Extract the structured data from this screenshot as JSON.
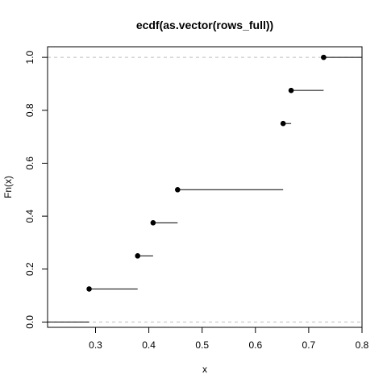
{
  "chart_data": {
    "type": "step",
    "title": "ecdf(as.vector(rows_full))",
    "xlabel": "x",
    "ylabel": "Fn(x)",
    "xlim": [
      0.21,
      0.8
    ],
    "ylim": [
      -0.02,
      1.04
    ],
    "x_ticks": [
      0.3,
      0.4,
      0.5,
      0.6,
      0.7,
      0.8
    ],
    "x_tick_labels": [
      "0.3",
      "0.4",
      "0.5",
      "0.6",
      "0.7",
      "0.8"
    ],
    "y_ticks": [
      0.0,
      0.2,
      0.4,
      0.6,
      0.8,
      1.0
    ],
    "y_tick_labels": [
      "0.0",
      "0.2",
      "0.4",
      "0.6",
      "0.8",
      "1.0"
    ],
    "horizontal_reference_lines": [
      0,
      1
    ],
    "jump_points": [
      {
        "x": 0.288,
        "y": 0.125
      },
      {
        "x": 0.379,
        "y": 0.25
      },
      {
        "x": 0.408,
        "y": 0.375
      },
      {
        "x": 0.454,
        "y": 0.5
      },
      {
        "x": 0.652,
        "y": 0.75
      },
      {
        "x": 0.667,
        "y": 0.875
      },
      {
        "x": 0.728,
        "y": 1.0
      }
    ],
    "colors": {
      "points": "#000000",
      "lines": "#000000",
      "reference": "#bebebe"
    },
    "grid": false
  }
}
